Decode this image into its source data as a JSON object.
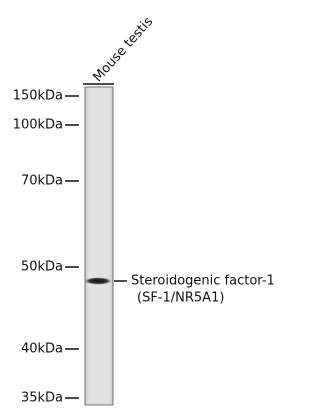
{
  "lane": {
    "label": "Mouse testis"
  },
  "markers": [
    "150kDa",
    "100kDa",
    "70kDa",
    "50kDa",
    "40kDa",
    "35kDa"
  ],
  "band": {
    "label_line1": "Steroidogenic factor-1",
    "label_line2": "(SF-1/NR5A1)"
  }
}
